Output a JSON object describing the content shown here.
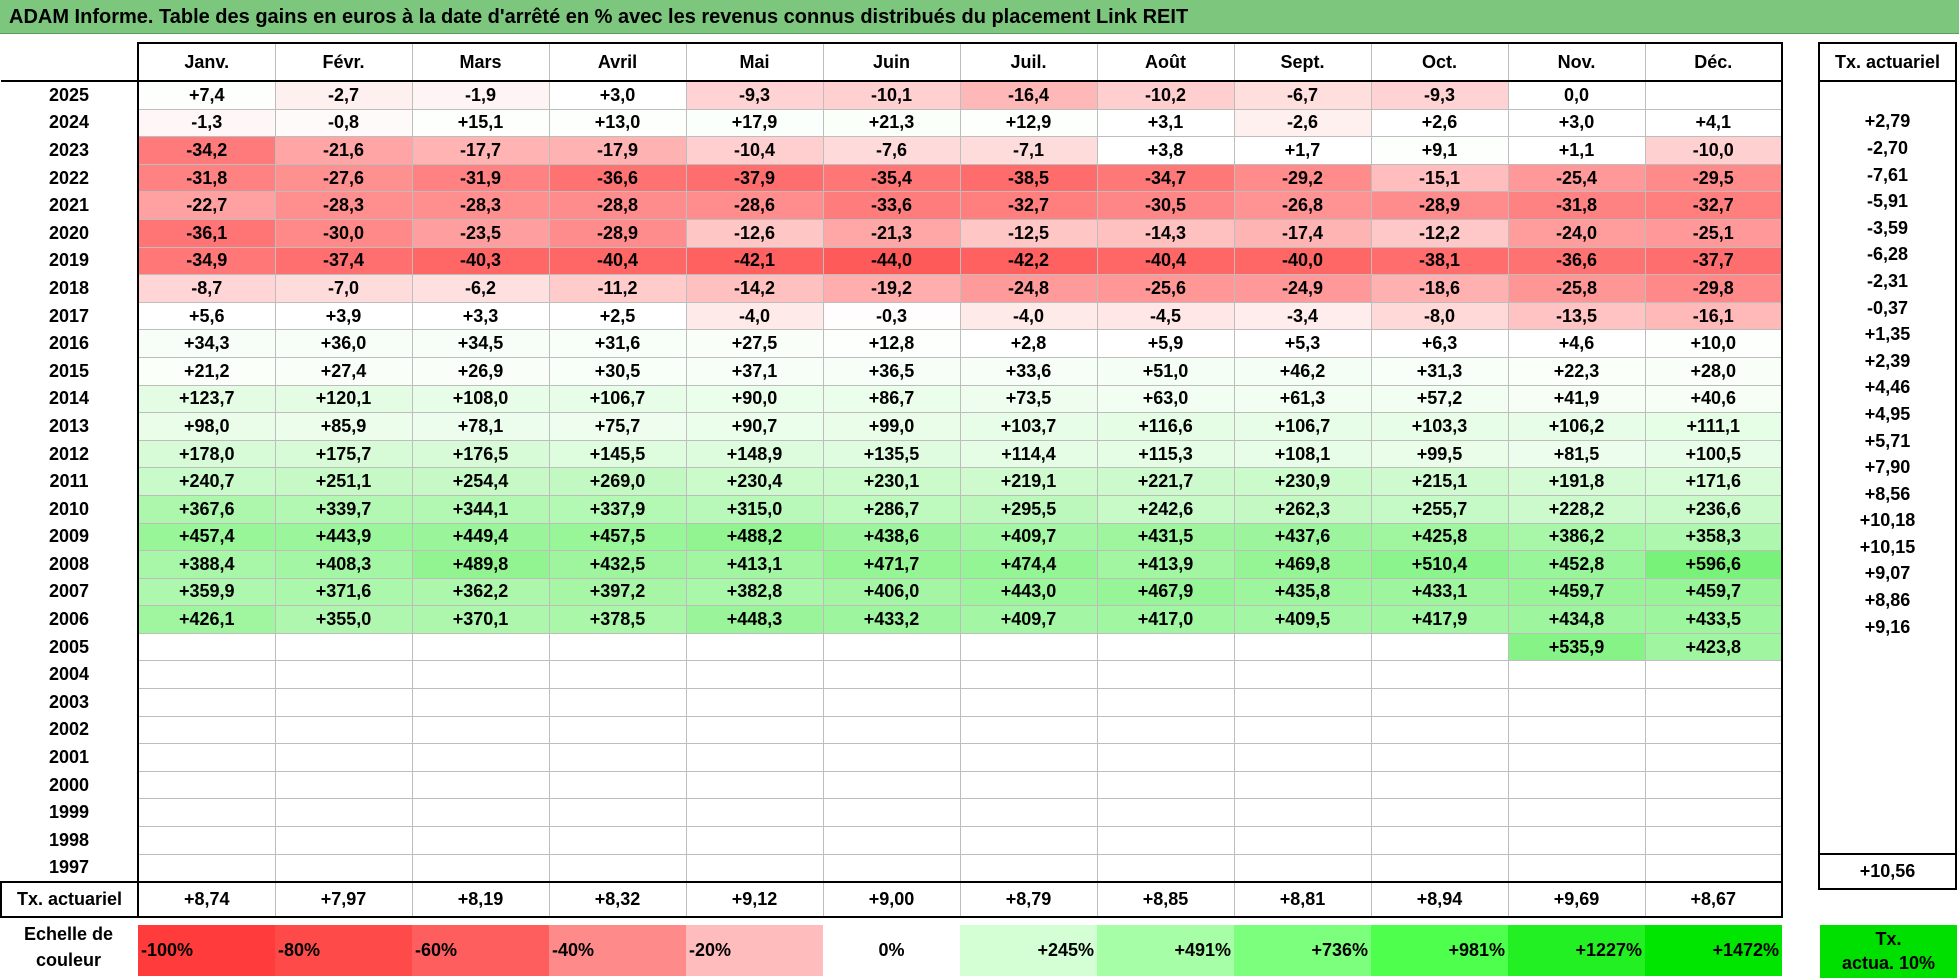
{
  "title": "ADAM Informe. Table des gains en euros à la date d'arrêté en % avec les revenus connus distribués du placement Link REIT",
  "months": [
    "Janv.",
    "Févr.",
    "Mars",
    "Avril",
    "Mai",
    "Juin",
    "Juil.",
    "Août",
    "Sept.",
    "Oct.",
    "Nov.",
    "Déc."
  ],
  "tx_header": "Tx. actuariel",
  "rows": [
    {
      "year": "2025",
      "values": [
        "+7,4",
        "-2,7",
        "-1,9",
        "+3,0",
        "-9,3",
        "-10,1",
        "-16,4",
        "-10,2",
        "-6,7",
        "-9,3",
        "0,0",
        ""
      ],
      "tx": ""
    },
    {
      "year": "2024",
      "values": [
        "-1,3",
        "-0,8",
        "+15,1",
        "+13,0",
        "+17,9",
        "+21,3",
        "+12,9",
        "+3,1",
        "-2,6",
        "+2,6",
        "+3,0",
        "+4,1"
      ],
      "tx": "+2,79"
    },
    {
      "year": "2023",
      "values": [
        "-34,2",
        "-21,6",
        "-17,7",
        "-17,9",
        "-10,4",
        "-7,6",
        "-7,1",
        "+3,8",
        "+1,7",
        "+9,1",
        "+1,1",
        "-10,0"
      ],
      "tx": "-2,70"
    },
    {
      "year": "2022",
      "values": [
        "-31,8",
        "-27,6",
        "-31,9",
        "-36,6",
        "-37,9",
        "-35,4",
        "-38,5",
        "-34,7",
        "-29,2",
        "-15,1",
        "-25,4",
        "-29,5"
      ],
      "tx": "-7,61"
    },
    {
      "year": "2021",
      "values": [
        "-22,7",
        "-28,3",
        "-28,3",
        "-28,8",
        "-28,6",
        "-33,6",
        "-32,7",
        "-30,5",
        "-26,8",
        "-28,9",
        "-31,8",
        "-32,7"
      ],
      "tx": "-5,91"
    },
    {
      "year": "2020",
      "values": [
        "-36,1",
        "-30,0",
        "-23,5",
        "-28,9",
        "-12,6",
        "-21,3",
        "-12,5",
        "-14,3",
        "-17,4",
        "-12,2",
        "-24,0",
        "-25,1"
      ],
      "tx": "-3,59"
    },
    {
      "year": "2019",
      "values": [
        "-34,9",
        "-37,4",
        "-40,3",
        "-40,4",
        "-42,1",
        "-44,0",
        "-42,2",
        "-40,4",
        "-40,0",
        "-38,1",
        "-36,6",
        "-37,7"
      ],
      "tx": "-6,28"
    },
    {
      "year": "2018",
      "values": [
        "-8,7",
        "-7,0",
        "-6,2",
        "-11,2",
        "-14,2",
        "-19,2",
        "-24,8",
        "-25,6",
        "-24,9",
        "-18,6",
        "-25,8",
        "-29,8"
      ],
      "tx": "-2,31"
    },
    {
      "year": "2017",
      "values": [
        "+5,6",
        "+3,9",
        "+3,3",
        "+2,5",
        "-4,0",
        "-0,3",
        "-4,0",
        "-4,5",
        "-3,4",
        "-8,0",
        "-13,5",
        "-16,1"
      ],
      "tx": "-0,37"
    },
    {
      "year": "2016",
      "values": [
        "+34,3",
        "+36,0",
        "+34,5",
        "+31,6",
        "+27,5",
        "+12,8",
        "+2,8",
        "+5,9",
        "+5,3",
        "+6,3",
        "+4,6",
        "+10,0"
      ],
      "tx": "+1,35"
    },
    {
      "year": "2015",
      "values": [
        "+21,2",
        "+27,4",
        "+26,9",
        "+30,5",
        "+37,1",
        "+36,5",
        "+33,6",
        "+51,0",
        "+46,2",
        "+31,3",
        "+22,3",
        "+28,0"
      ],
      "tx": "+2,39"
    },
    {
      "year": "2014",
      "values": [
        "+123,7",
        "+120,1",
        "+108,0",
        "+106,7",
        "+90,0",
        "+86,7",
        "+73,5",
        "+63,0",
        "+61,3",
        "+57,2",
        "+41,9",
        "+40,6"
      ],
      "tx": "+4,46"
    },
    {
      "year": "2013",
      "values": [
        "+98,0",
        "+85,9",
        "+78,1",
        "+75,7",
        "+90,7",
        "+99,0",
        "+103,7",
        "+116,6",
        "+106,7",
        "+103,3",
        "+106,2",
        "+111,1"
      ],
      "tx": "+4,95"
    },
    {
      "year": "2012",
      "values": [
        "+178,0",
        "+175,7",
        "+176,5",
        "+145,5",
        "+148,9",
        "+135,5",
        "+114,4",
        "+115,3",
        "+108,1",
        "+99,5",
        "+81,5",
        "+100,5"
      ],
      "tx": "+5,71"
    },
    {
      "year": "2011",
      "values": [
        "+240,7",
        "+251,1",
        "+254,4",
        "+269,0",
        "+230,4",
        "+230,1",
        "+219,1",
        "+221,7",
        "+230,9",
        "+215,1",
        "+191,8",
        "+171,6"
      ],
      "tx": "+7,90"
    },
    {
      "year": "2010",
      "values": [
        "+367,6",
        "+339,7",
        "+344,1",
        "+337,9",
        "+315,0",
        "+286,7",
        "+295,5",
        "+242,6",
        "+262,3",
        "+255,7",
        "+228,2",
        "+236,6"
      ],
      "tx": "+8,56"
    },
    {
      "year": "2009",
      "values": [
        "+457,4",
        "+443,9",
        "+449,4",
        "+457,5",
        "+488,2",
        "+438,6",
        "+409,7",
        "+431,5",
        "+437,6",
        "+425,8",
        "+386,2",
        "+358,3"
      ],
      "tx": "+10,18"
    },
    {
      "year": "2008",
      "values": [
        "+388,4",
        "+408,3",
        "+489,8",
        "+432,5",
        "+413,1",
        "+471,7",
        "+474,4",
        "+413,9",
        "+469,8",
        "+510,4",
        "+452,8",
        "+596,6"
      ],
      "tx": "+10,15"
    },
    {
      "year": "2007",
      "values": [
        "+359,9",
        "+371,6",
        "+362,2",
        "+397,2",
        "+382,8",
        "+406,0",
        "+443,0",
        "+467,9",
        "+435,8",
        "+433,1",
        "+459,7",
        "+459,7"
      ],
      "tx": "+9,07"
    },
    {
      "year": "2006",
      "values": [
        "+426,1",
        "+355,0",
        "+370,1",
        "+378,5",
        "+448,3",
        "+433,2",
        "+409,7",
        "+417,0",
        "+409,5",
        "+417,9",
        "+434,8",
        "+433,5"
      ],
      "tx": "+8,86"
    },
    {
      "year": "2005",
      "values": [
        "",
        "",
        "",
        "",
        "",
        "",
        "",
        "",
        "",
        "",
        "+535,9",
        "+423,8"
      ],
      "tx": "+9,16"
    },
    {
      "year": "2004",
      "values": [
        "",
        "",
        "",
        "",
        "",
        "",
        "",
        "",
        "",
        "",
        "",
        ""
      ],
      "tx": ""
    },
    {
      "year": "2003",
      "values": [
        "",
        "",
        "",
        "",
        "",
        "",
        "",
        "",
        "",
        "",
        "",
        ""
      ],
      "tx": ""
    },
    {
      "year": "2002",
      "values": [
        "",
        "",
        "",
        "",
        "",
        "",
        "",
        "",
        "",
        "",
        "",
        ""
      ],
      "tx": ""
    },
    {
      "year": "2001",
      "values": [
        "",
        "",
        "",
        "",
        "",
        "",
        "",
        "",
        "",
        "",
        "",
        ""
      ],
      "tx": ""
    },
    {
      "year": "2000",
      "values": [
        "",
        "",
        "",
        "",
        "",
        "",
        "",
        "",
        "",
        "",
        "",
        ""
      ],
      "tx": ""
    },
    {
      "year": "1999",
      "values": [
        "",
        "",
        "",
        "",
        "",
        "",
        "",
        "",
        "",
        "",
        "",
        ""
      ],
      "tx": ""
    },
    {
      "year": "1998",
      "values": [
        "",
        "",
        "",
        "",
        "",
        "",
        "",
        "",
        "",
        "",
        "",
        ""
      ],
      "tx": ""
    },
    {
      "year": "1997",
      "values": [
        "",
        "",
        "",
        "",
        "",
        "",
        "",
        "",
        "",
        "",
        "",
        ""
      ],
      "tx": ""
    }
  ],
  "footer": {
    "label": "Tx. actuariel",
    "values": [
      "+8,74",
      "+7,97",
      "+8,19",
      "+8,32",
      "+9,12",
      "+9,00",
      "+8,79",
      "+8,85",
      "+8,81",
      "+8,94",
      "+9,69",
      "+8,67"
    ],
    "tx": "+10,56"
  },
  "scale": {
    "label_line1": "Echelle de",
    "label_line2": "couleur",
    "cells": [
      {
        "text": "-100%",
        "color": "#ff3b3b",
        "align": "left"
      },
      {
        "text": "-80%",
        "color": "#ff4a4a",
        "align": "left"
      },
      {
        "text": "-60%",
        "color": "#ff5e5e",
        "align": "left"
      },
      {
        "text": "-40%",
        "color": "#ff8a8a",
        "align": "left"
      },
      {
        "text": "-20%",
        "color": "#ffbcbc",
        "align": "left"
      },
      {
        "text": "0%",
        "color": "#ffffff",
        "align": "center"
      },
      {
        "text": "+245%",
        "color": "#d4ffd4",
        "align": "right"
      },
      {
        "text": "+491%",
        "color": "#a6ffa6",
        "align": "right"
      },
      {
        "text": "+736%",
        "color": "#7cff7c",
        "align": "right"
      },
      {
        "text": "+981%",
        "color": "#4eff4e",
        "align": "right"
      },
      {
        "text": "+1227%",
        "color": "#22f022",
        "align": "right"
      },
      {
        "text": "+1472%",
        "color": "#00e600",
        "align": "right"
      }
    ],
    "legend_line1": "Tx.",
    "legend_line2": "actua. 10%",
    "legend_color": "#00e000"
  },
  "colors": {
    "title_bg": "#7dc67d",
    "neg_max": "#ff5a5a",
    "pos_max": "#00e600"
  }
}
